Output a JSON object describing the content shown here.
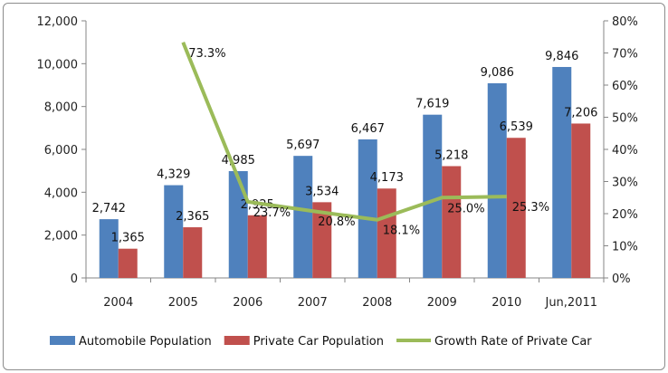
{
  "chart_data": {
    "type": "bar",
    "categories": [
      "2004",
      "2005",
      "2006",
      "2007",
      "2008",
      "2009",
      "2010",
      "Jun,2011"
    ],
    "series": [
      {
        "name": "Automobile Population",
        "type": "bar",
        "axis": "left",
        "color": "#4f81bd",
        "values": [
          2742,
          4329,
          4985,
          5697,
          6467,
          7619,
          9086,
          9846
        ],
        "labels": [
          "2,742",
          "4,329",
          "4,985",
          "5,697",
          "6,467",
          "7,619",
          "9,086",
          "9,846"
        ]
      },
      {
        "name": "Private Car Population",
        "type": "bar",
        "axis": "left",
        "color": "#c0504d",
        "values": [
          1365,
          2365,
          2925,
          3534,
          4173,
          5218,
          6539,
          7206
        ],
        "labels": [
          "1,365",
          "2,365",
          "2,925",
          "3,534",
          "4,173",
          "5,218",
          "6,539",
          "7,206"
        ]
      },
      {
        "name": "Growth Rate of Private Car",
        "type": "line",
        "axis": "right",
        "color": "#9bbb59",
        "values": [
          null,
          73.3,
          23.7,
          20.8,
          18.1,
          25.0,
          25.3,
          null
        ],
        "labels": [
          "",
          "73.3%",
          "23.7%",
          "20.8%",
          "18.1%",
          "25.0%",
          "25.3%",
          ""
        ]
      }
    ],
    "y_left": {
      "min": 0,
      "max": 12000,
      "ticks": [
        0,
        2000,
        4000,
        6000,
        8000,
        10000,
        12000
      ],
      "tick_labels": [
        "0",
        "2,000",
        "4,000",
        "6,000",
        "8,000",
        "10,000",
        "12,000"
      ]
    },
    "y_right": {
      "min": 0,
      "max": 80,
      "ticks": [
        0,
        10,
        20,
        30,
        40,
        50,
        60,
        70,
        80
      ],
      "tick_labels": [
        "0%",
        "10%",
        "20%",
        "30%",
        "40%",
        "50%",
        "60%",
        "70%",
        "80%"
      ]
    },
    "grid": false,
    "legend_position": "bottom"
  }
}
